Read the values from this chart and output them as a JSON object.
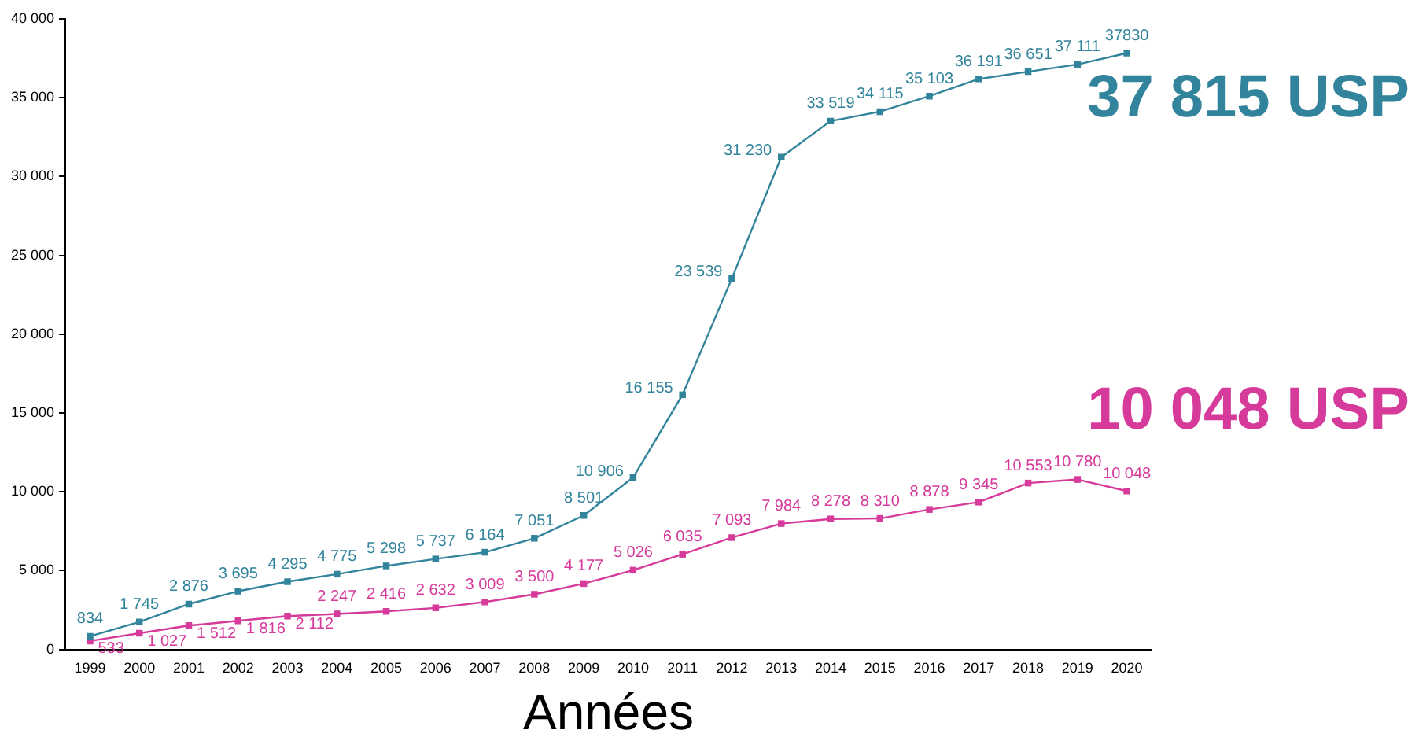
{
  "chart_data": {
    "type": "line",
    "xlabel": "Années",
    "categories": [
      "1999",
      "2000",
      "2001",
      "2002",
      "2003",
      "2004",
      "2005",
      "2006",
      "2007",
      "2008",
      "2009",
      "2010",
      "2011",
      "2012",
      "2013",
      "2014",
      "2015",
      "2016",
      "2017",
      "2018",
      "2019",
      "2020"
    ],
    "series": [
      {
        "name": "37 815 USP",
        "color": "#31849b",
        "values": [
          834,
          1745,
          2876,
          3695,
          4295,
          4775,
          5298,
          5737,
          6164,
          7051,
          8501,
          10906,
          16155,
          23539,
          31230,
          33519,
          34115,
          35103,
          36191,
          36651,
          37111,
          37830
        ],
        "value_labels": [
          "834",
          "1 745",
          "2 876",
          "3 695",
          "4 295",
          "4 775",
          "5 298",
          "5 737",
          "6 164",
          "7 051",
          "8 501",
          "10 906",
          "16 155",
          "23 539",
          "31 230",
          "33 519",
          "34 115",
          "35 103",
          "36 191",
          "36 651",
          "37 111",
          "37830"
        ]
      },
      {
        "name": "10 048 USP",
        "color": "#d63a9b",
        "values": [
          533,
          1027,
          1512,
          1816,
          2112,
          2247,
          2416,
          2632,
          3009,
          3500,
          4177,
          5026,
          6035,
          7093,
          7984,
          8278,
          8310,
          8878,
          9345,
          10553,
          10780,
          10048
        ],
        "value_labels": [
          "533",
          "1 027",
          "1 512",
          "1 816",
          "2 112",
          "2 247",
          "2 416",
          "2 632",
          "3 009",
          "3 500",
          "4 177",
          "5 026",
          "6 035",
          "7 093",
          "7 984",
          "8 278",
          "8 310",
          "8 878",
          "9 345",
          "10 553",
          "10 780",
          "10 048"
        ]
      }
    ],
    "ylim": [
      0,
      40000
    ],
    "yticks": [
      0,
      {
        "value": 5000,
        "label": "5 000"
      },
      {
        "value": 10000,
        "label": "10 000"
      },
      {
        "value": 15000,
        "label": "15 000"
      },
      {
        "value": 20000,
        "label": "20 000"
      },
      {
        "value": 25000,
        "label": "25 000"
      },
      {
        "value": 30000,
        "label": "30 000"
      },
      {
        "value": 35000,
        "label": "35 000"
      },
      {
        "value": 40000,
        "label": "40 000"
      }
    ],
    "grid": false,
    "legend": false,
    "marker": "square",
    "line_style": "solid"
  }
}
